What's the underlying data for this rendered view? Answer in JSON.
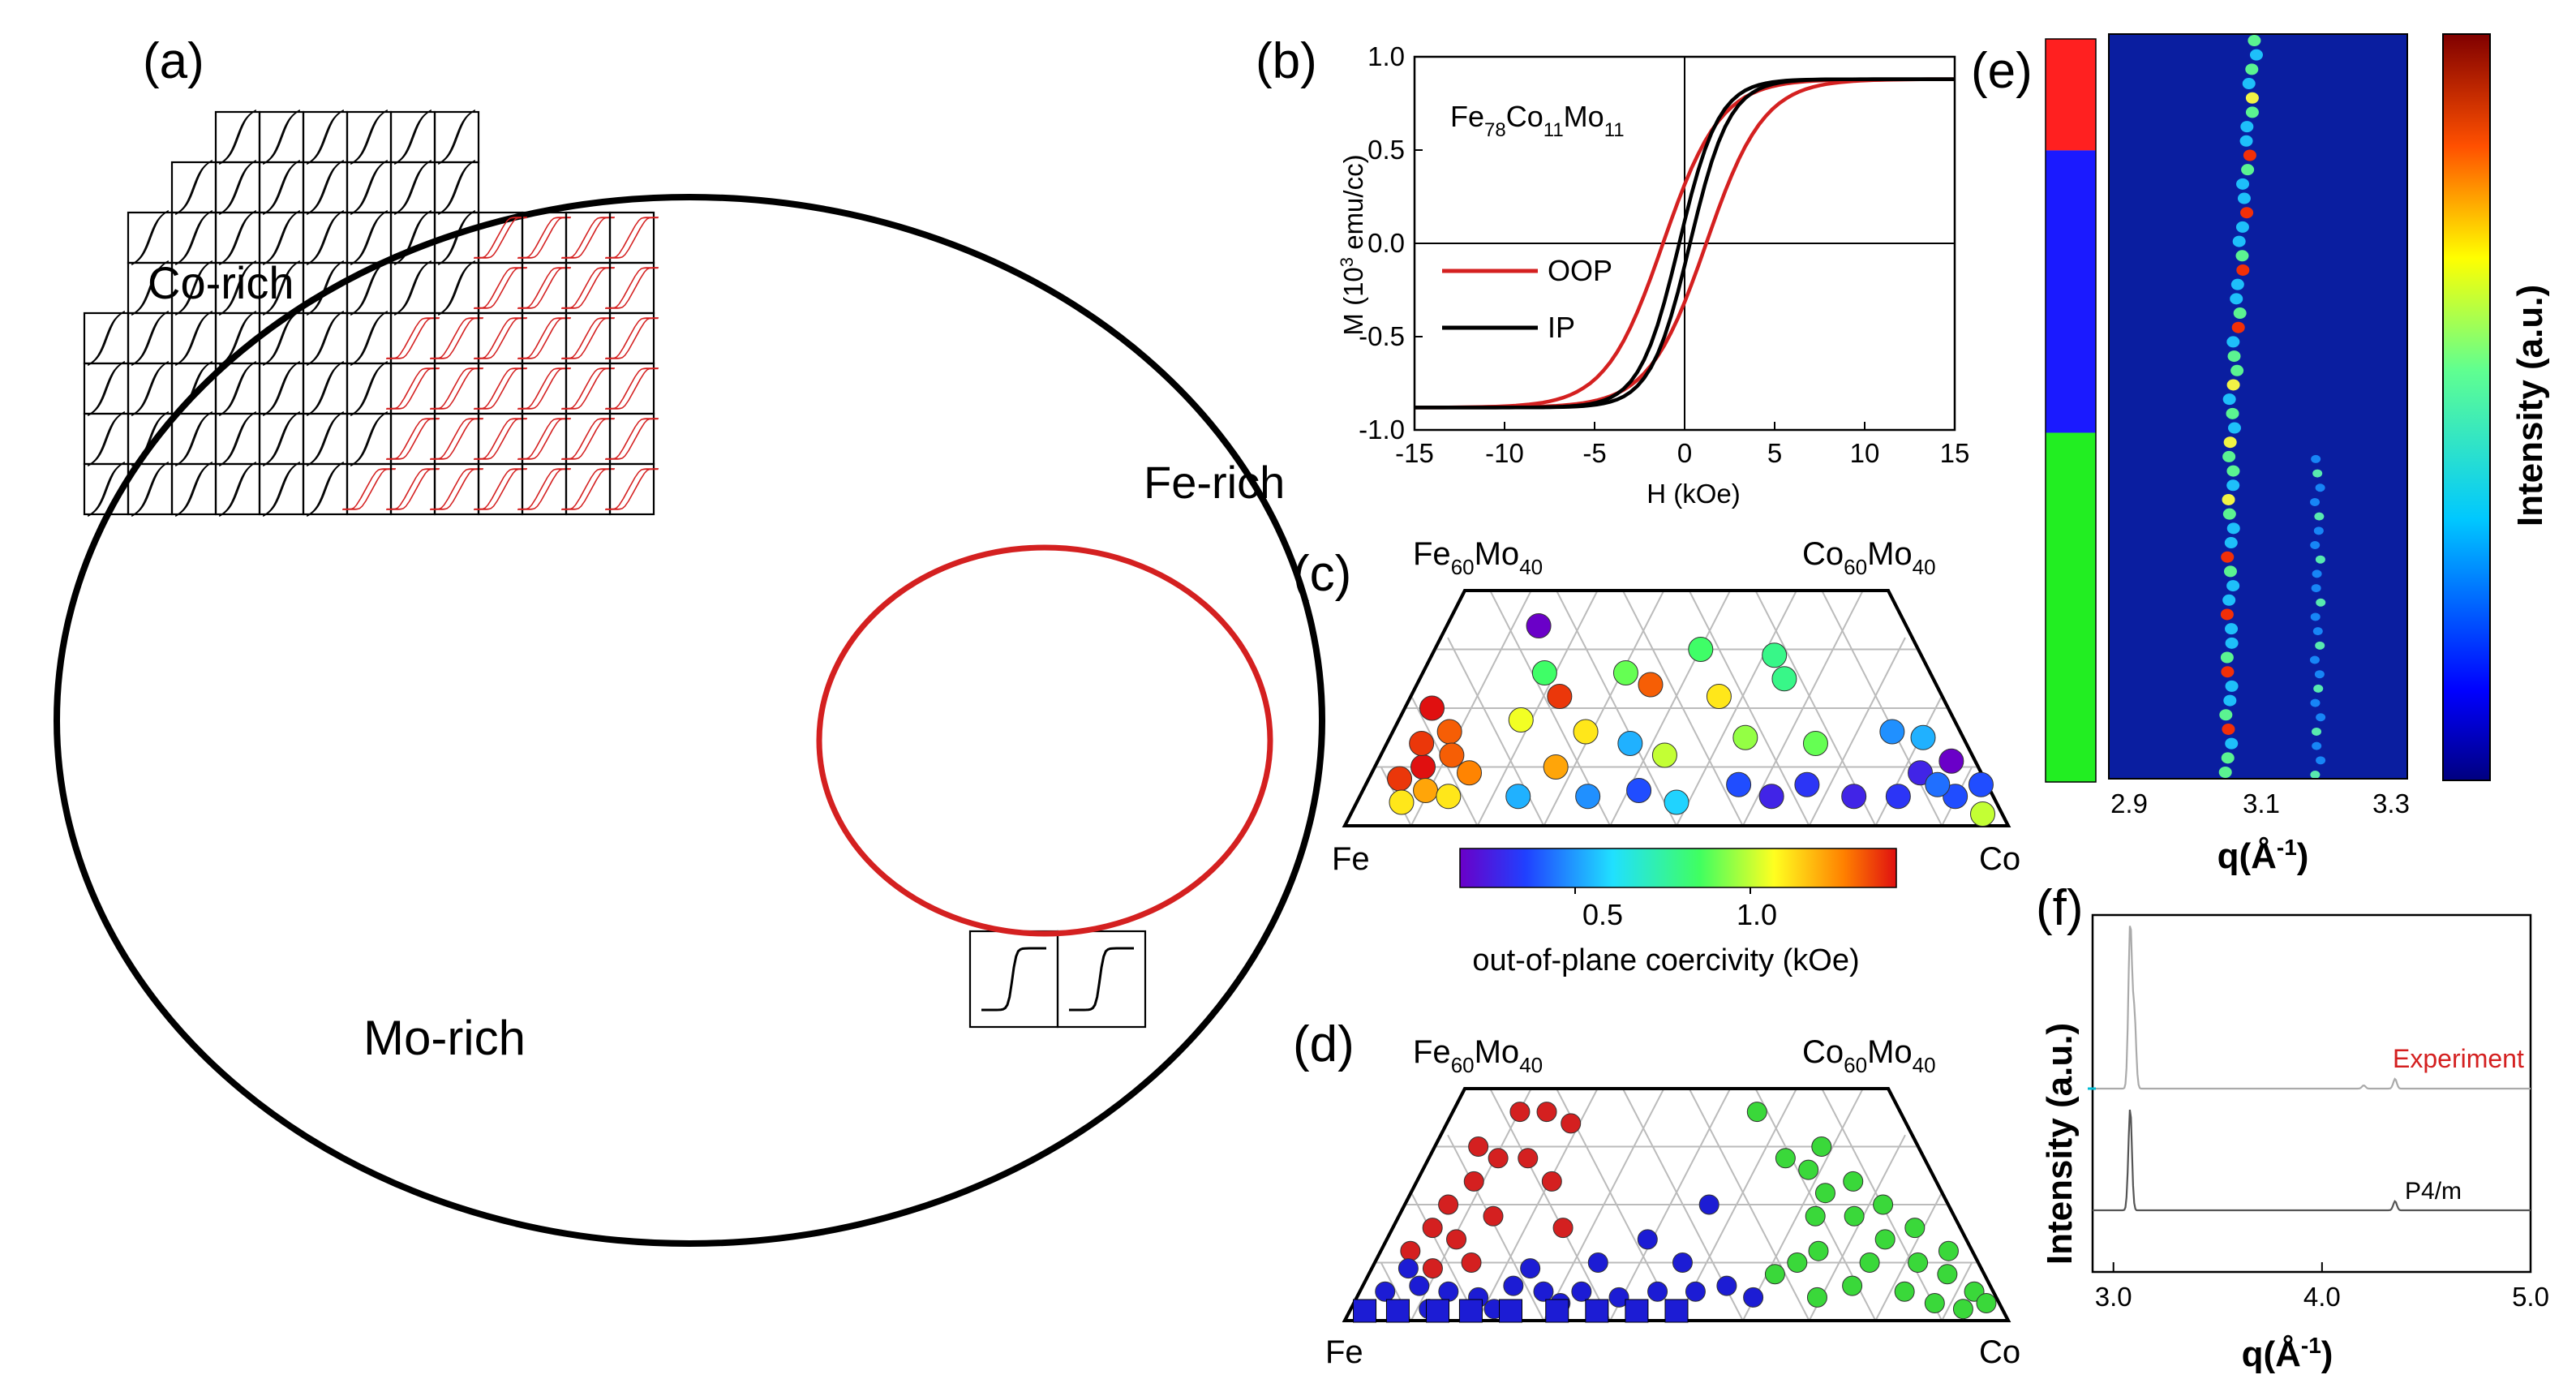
{
  "panel_a": {
    "label": "(a)",
    "regions": {
      "co": "Co-rich",
      "fe": "Fe-rich",
      "mo": "Mo-rich"
    },
    "loop_colors": {
      "soft": "#000000",
      "square": "#d42020"
    }
  },
  "panel_b": {
    "label": "(b)",
    "sample_parts": [
      "Fe",
      "78",
      "Co",
      "11",
      "Mo",
      "11"
    ],
    "ylabel_parts": [
      "M (10",
      "3",
      " emu/cc)"
    ],
    "xlabel": "H (kOe)",
    "chart_data": {
      "type": "line",
      "xlabel": "H (kOe)",
      "ylabel": "M (10^3 emu/cc)",
      "xlim": [
        -15,
        15
      ],
      "ylim": [
        -1.0,
        1.0
      ],
      "xticks": [
        "-15",
        "-10",
        "-5",
        "0",
        "5",
        "10",
        "15"
      ],
      "yticks": [
        "1.0",
        "0.5",
        "0.0",
        "-0.5",
        "-1.0"
      ],
      "legend": "top-left",
      "series": [
        {
          "name": "OOP",
          "color": "#d42020",
          "saturation": 0.88,
          "coercivity": 1.2,
          "width": 3.2
        },
        {
          "name": "IP",
          "color": "#000000",
          "saturation": 0.88,
          "coercivity": 0.3,
          "width": 2.2
        }
      ]
    }
  },
  "panel_c": {
    "label": "(c)",
    "corner_fe": [
      "Fe",
      "60",
      "Mo",
      "40"
    ],
    "corner_co": [
      "Co",
      "60",
      "Mo",
      "40"
    ],
    "left": "Fe",
    "right": "Co",
    "colorbar_ticks": [
      "0.5",
      "1.0"
    ],
    "colorbar_label": "out-of-plane coercivity (kOe)",
    "chart_data": {
      "type": "scatter",
      "colorbar_range": [
        0.1,
        1.3
      ],
      "axes": "Fe fraction (of Fe+Co), Mo fraction 0-40 at%",
      "points": [
        [
          0.1,
          0.16,
          1.2
        ],
        [
          0.05,
          0.08,
          1.25
        ],
        [
          0.08,
          0.1,
          1.3
        ],
        [
          0.12,
          0.12,
          1.2
        ],
        [
          0.06,
          0.14,
          1.25
        ],
        [
          0.1,
          0.06,
          1.1
        ],
        [
          0.07,
          0.04,
          1.0
        ],
        [
          0.14,
          0.05,
          1.0
        ],
        [
          0.16,
          0.09,
          1.15
        ],
        [
          0.05,
          0.2,
          1.3
        ],
        [
          0.2,
          0.34,
          0.05
        ],
        [
          0.24,
          0.26,
          0.75
        ],
        [
          0.28,
          0.22,
          1.25
        ],
        [
          0.22,
          0.18,
          0.95
        ],
        [
          0.3,
          0.1,
          1.1
        ],
        [
          0.25,
          0.05,
          0.45
        ],
        [
          0.34,
          0.16,
          1.0
        ],
        [
          0.4,
          0.26,
          0.8
        ],
        [
          0.45,
          0.24,
          1.2
        ],
        [
          0.42,
          0.14,
          0.45
        ],
        [
          0.48,
          0.12,
          0.9
        ],
        [
          0.36,
          0.05,
          0.4
        ],
        [
          0.5,
          0.04,
          0.5
        ],
        [
          0.44,
          0.06,
          0.3
        ],
        [
          0.55,
          0.3,
          0.75
        ],
        [
          0.58,
          0.22,
          1.0
        ],
        [
          0.62,
          0.15,
          0.85
        ],
        [
          0.6,
          0.07,
          0.3
        ],
        [
          0.65,
          0.05,
          0.2
        ],
        [
          0.7,
          0.29,
          0.7
        ],
        [
          0.71,
          0.25,
          0.7
        ],
        [
          0.74,
          0.14,
          0.8
        ],
        [
          0.71,
          0.07,
          0.25
        ],
        [
          0.78,
          0.05,
          0.2
        ],
        [
          0.88,
          0.16,
          0.4
        ],
        [
          0.93,
          0.15,
          0.45
        ],
        [
          0.9,
          0.09,
          0.2
        ],
        [
          0.94,
          0.05,
          0.3
        ],
        [
          0.96,
          0.11,
          0.1
        ],
        [
          0.97,
          0.02,
          0.9
        ],
        [
          0.99,
          0.07,
          0.3
        ],
        [
          0.92,
          0.07,
          0.35
        ],
        [
          0.85,
          0.05,
          0.25
        ]
      ]
    }
  },
  "panel_d": {
    "label": "(d)",
    "corner_fe": [
      "Fe",
      "60",
      "Mo",
      "40"
    ],
    "corner_co": [
      "Co",
      "60",
      "Mo",
      "40"
    ],
    "left": "Fe",
    "right": "Co",
    "chart_data": {
      "type": "scatter",
      "colors": {
        "red": "#d42020",
        "blue": "#1c1cd4",
        "green": "#3ad83a"
      },
      "groups": {
        "red": [
          [
            0.09,
            0.3
          ],
          [
            0.11,
            0.24
          ],
          [
            0.08,
            0.2
          ],
          [
            0.14,
            0.28
          ],
          [
            0.15,
            0.36
          ],
          [
            0.07,
            0.16
          ],
          [
            0.12,
            0.14
          ],
          [
            0.17,
            0.18
          ],
          [
            0.2,
            0.28
          ],
          [
            0.21,
            0.36
          ],
          [
            0.26,
            0.24
          ],
          [
            0.27,
            0.34
          ],
          [
            0.3,
            0.16
          ],
          [
            0.16,
            0.1
          ],
          [
            0.05,
            0.12
          ],
          [
            0.1,
            0.09
          ]
        ],
        "blue": [
          [
            0.04,
            0.05
          ],
          [
            0.09,
            0.06
          ],
          [
            0.14,
            0.05
          ],
          [
            0.19,
            0.04
          ],
          [
            0.24,
            0.06
          ],
          [
            0.29,
            0.05
          ],
          [
            0.35,
            0.05
          ],
          [
            0.41,
            0.04
          ],
          [
            0.47,
            0.05
          ],
          [
            0.53,
            0.05
          ],
          [
            0.58,
            0.06
          ],
          [
            0.62,
            0.04
          ],
          [
            0.12,
            0.02
          ],
          [
            0.22,
            0.02
          ],
          [
            0.32,
            0.03
          ],
          [
            0.37,
            0.1
          ],
          [
            0.45,
            0.14
          ],
          [
            0.51,
            0.1
          ],
          [
            0.56,
            0.2
          ],
          [
            0.06,
            0.09
          ],
          [
            0.26,
            0.09
          ]
        ],
        "green": [
          [
            0.68,
            0.36
          ],
          [
            0.72,
            0.28
          ],
          [
            0.76,
            0.26
          ],
          [
            0.78,
            0.22
          ],
          [
            0.8,
            0.3
          ],
          [
            0.82,
            0.18
          ],
          [
            0.84,
            0.24
          ],
          [
            0.86,
            0.14
          ],
          [
            0.88,
            0.2
          ],
          [
            0.9,
            0.1
          ],
          [
            0.92,
            0.16
          ],
          [
            0.94,
            0.08
          ],
          [
            0.96,
            0.12
          ],
          [
            0.97,
            0.05
          ],
          [
            0.74,
            0.12
          ],
          [
            0.78,
            0.06
          ],
          [
            0.82,
            0.1
          ],
          [
            0.86,
            0.05
          ],
          [
            0.9,
            0.03
          ],
          [
            0.94,
            0.02
          ],
          [
            0.98,
            0.03
          ],
          [
            0.7,
            0.1
          ],
          [
            0.75,
            0.18
          ],
          [
            0.66,
            0.08
          ],
          [
            0.72,
            0.04
          ]
        ]
      },
      "squares": [
        0.03,
        0.08,
        0.14,
        0.19,
        0.25,
        0.32,
        0.38,
        0.44,
        0.5
      ]
    }
  },
  "panel_e": {
    "label": "(e)",
    "phase_bar": [
      {
        "color": "#ff2020",
        "from": 0.0,
        "to": 0.15
      },
      {
        "color": "#1a1aff",
        "from": 0.15,
        "to": 0.53
      },
      {
        "color": "#22ee22",
        "from": 0.53,
        "to": 1.0
      }
    ],
    "xticks": [
      "2.9",
      "3.1",
      "3.3"
    ],
    "xlabel_parts": [
      "q(Å",
      "-1",
      ")"
    ],
    "colorbar_label": "Intensity (a.u.)",
    "chart_data": {
      "type": "heatmap",
      "xlim": [
        2.9,
        3.3
      ],
      "peak_main_q": 3.07,
      "peak_second_q": 3.18
    }
  },
  "panel_f": {
    "label": "(f)",
    "ylabel": "Intensity (a.u.)",
    "xlabel_parts": [
      "q(Å",
      "-1",
      ")"
    ],
    "exp_label": "Experiment",
    "sim_label": "P4/m",
    "chart_data": {
      "type": "line",
      "xlim": [
        2.9,
        5.0
      ],
      "xticks": [
        "3.0",
        "4.0",
        "5.0"
      ],
      "series": [
        {
          "name": "Experiment",
          "color": "#aaaaaa",
          "peaks": [
            [
              3.08,
              1.0
            ],
            [
              3.1,
              0.45
            ],
            [
              4.35,
              0.06
            ],
            [
              4.2,
              0.02
            ]
          ]
        },
        {
          "name": "P4/m",
          "color": "#555555",
          "peaks": [
            [
              3.08,
              0.9
            ],
            [
              4.35,
              0.08
            ]
          ]
        }
      ]
    }
  }
}
